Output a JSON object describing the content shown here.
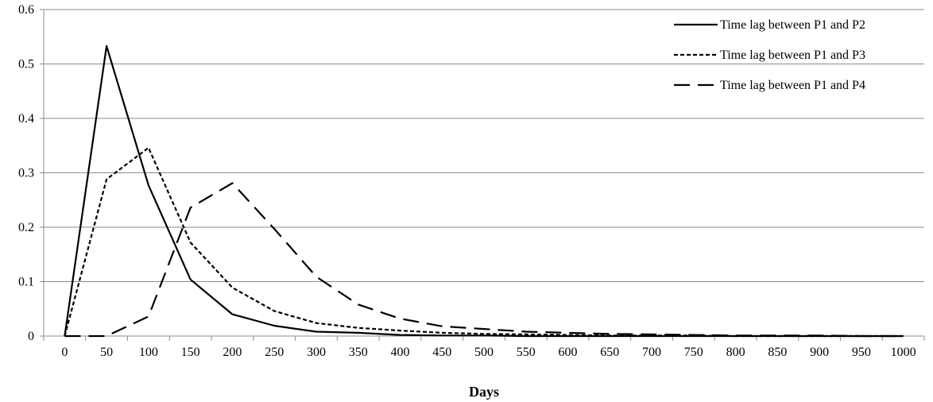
{
  "chart_data": {
    "type": "line",
    "title": "",
    "xlabel": "Days",
    "ylabel": "",
    "xlim": [
      0,
      1000
    ],
    "ylim": [
      0,
      0.6
    ],
    "grid": "horizontal",
    "legend_position": "top-right",
    "x": [
      0,
      50,
      100,
      150,
      200,
      250,
      300,
      350,
      400,
      450,
      500,
      550,
      600,
      650,
      700,
      750,
      800,
      850,
      900,
      950,
      1000
    ],
    "x_tick_labels": [
      "0",
      "50",
      "100",
      "150",
      "200",
      "250",
      "300",
      "350",
      "400",
      "450",
      "500",
      "550",
      "600",
      "650",
      "700",
      "750",
      "800",
      "850",
      "900",
      "950",
      "1000"
    ],
    "y_tick_values": [
      0,
      0.1,
      0.2,
      0.3,
      0.4,
      0.5,
      0.6
    ],
    "y_tick_labels": [
      "0",
      "0.1",
      "0.2",
      "0.3",
      "0.4",
      "0.5",
      "0.6"
    ],
    "series": [
      {
        "name": "Time lag between P1 and P2",
        "dash": "solid",
        "values": [
          0,
          0.533,
          0.277,
          0.104,
          0.04,
          0.019,
          0.008,
          0.006,
          0.002,
          0.001,
          0.001,
          0,
          0,
          0,
          0,
          0,
          0,
          0,
          0,
          0,
          0
        ]
      },
      {
        "name": "Time lag between P1 and P3",
        "dash": "dotted",
        "values": [
          0,
          0.288,
          0.346,
          0.172,
          0.089,
          0.046,
          0.024,
          0.015,
          0.01,
          0.006,
          0.004,
          0.003,
          0.002,
          0.001,
          0.001,
          0.001,
          0,
          0,
          0,
          0,
          0
        ]
      },
      {
        "name": "Time lag between P1 and P4",
        "dash": "dashed",
        "values": [
          0,
          0,
          0.036,
          0.236,
          0.281,
          0.197,
          0.109,
          0.058,
          0.032,
          0.018,
          0.013,
          0.008,
          0.006,
          0.004,
          0.003,
          0.002,
          0.001,
          0.001,
          0.001,
          0,
          0
        ]
      }
    ]
  }
}
